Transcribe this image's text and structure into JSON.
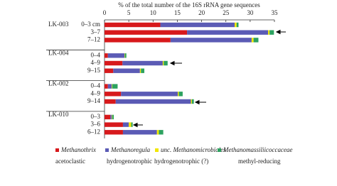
{
  "chart_data": {
    "type": "bar",
    "orientation": "horizontal",
    "stacked": true,
    "x_label": "% of the total number of the 16S rRNA gene sequences",
    "groups": [
      {
        "name": "LK-003",
        "categories": [
          "0–3 cm",
          "3–7",
          "7–12"
        ]
      },
      {
        "name": "LK-004",
        "categories": [
          "0–4",
          "4–9",
          "9–15"
        ]
      },
      {
        "name": "LK-002",
        "categories": [
          "0–4",
          "4–9",
          "9–14"
        ]
      },
      {
        "name": "LK-010",
        "categories": [
          "0–3",
          "3–6",
          "6–12"
        ]
      }
    ],
    "series": [
      {
        "name": "Methanothrix",
        "role": "acetoclastic",
        "color": "#d7191c",
        "values": [
          11.5,
          17,
          13.6,
          0.7,
          3.7,
          1.8,
          0.7,
          3.4,
          2.3,
          1.2,
          3.8,
          3.8
        ]
      },
      {
        "name": "Methanoregula",
        "role": "hydrogenotrophic",
        "color": "#5b5bb5",
        "values": [
          15.3,
          16.7,
          16.7,
          3.4,
          8.3,
          5.5,
          0.8,
          11.7,
          15.5,
          0.3,
          1.2,
          7
        ]
      },
      {
        "name": "unc. Methanomicrobiales",
        "role": "hydrogenotrophic (?)",
        "color": "#f2e600",
        "values": [
          0.4,
          0.3,
          0.4,
          0.1,
          0.2,
          0.2,
          0.1,
          0.2,
          0.2,
          0.1,
          0.5,
          0.4
        ]
      },
      {
        "name": "Methanomassiliicoccaceae",
        "role": "methyl-reducing",
        "color": "#2ca25f",
        "values": [
          0.4,
          0.9,
          1.0,
          0.3,
          0.8,
          0.7,
          1.1,
          0.8,
          0.4,
          0.3,
          0.3,
          0.9
        ]
      }
    ],
    "xlim": [
      0,
      35
    ],
    "xticks": [
      0,
      5,
      10,
      15,
      20,
      25,
      30,
      35
    ]
  }
}
